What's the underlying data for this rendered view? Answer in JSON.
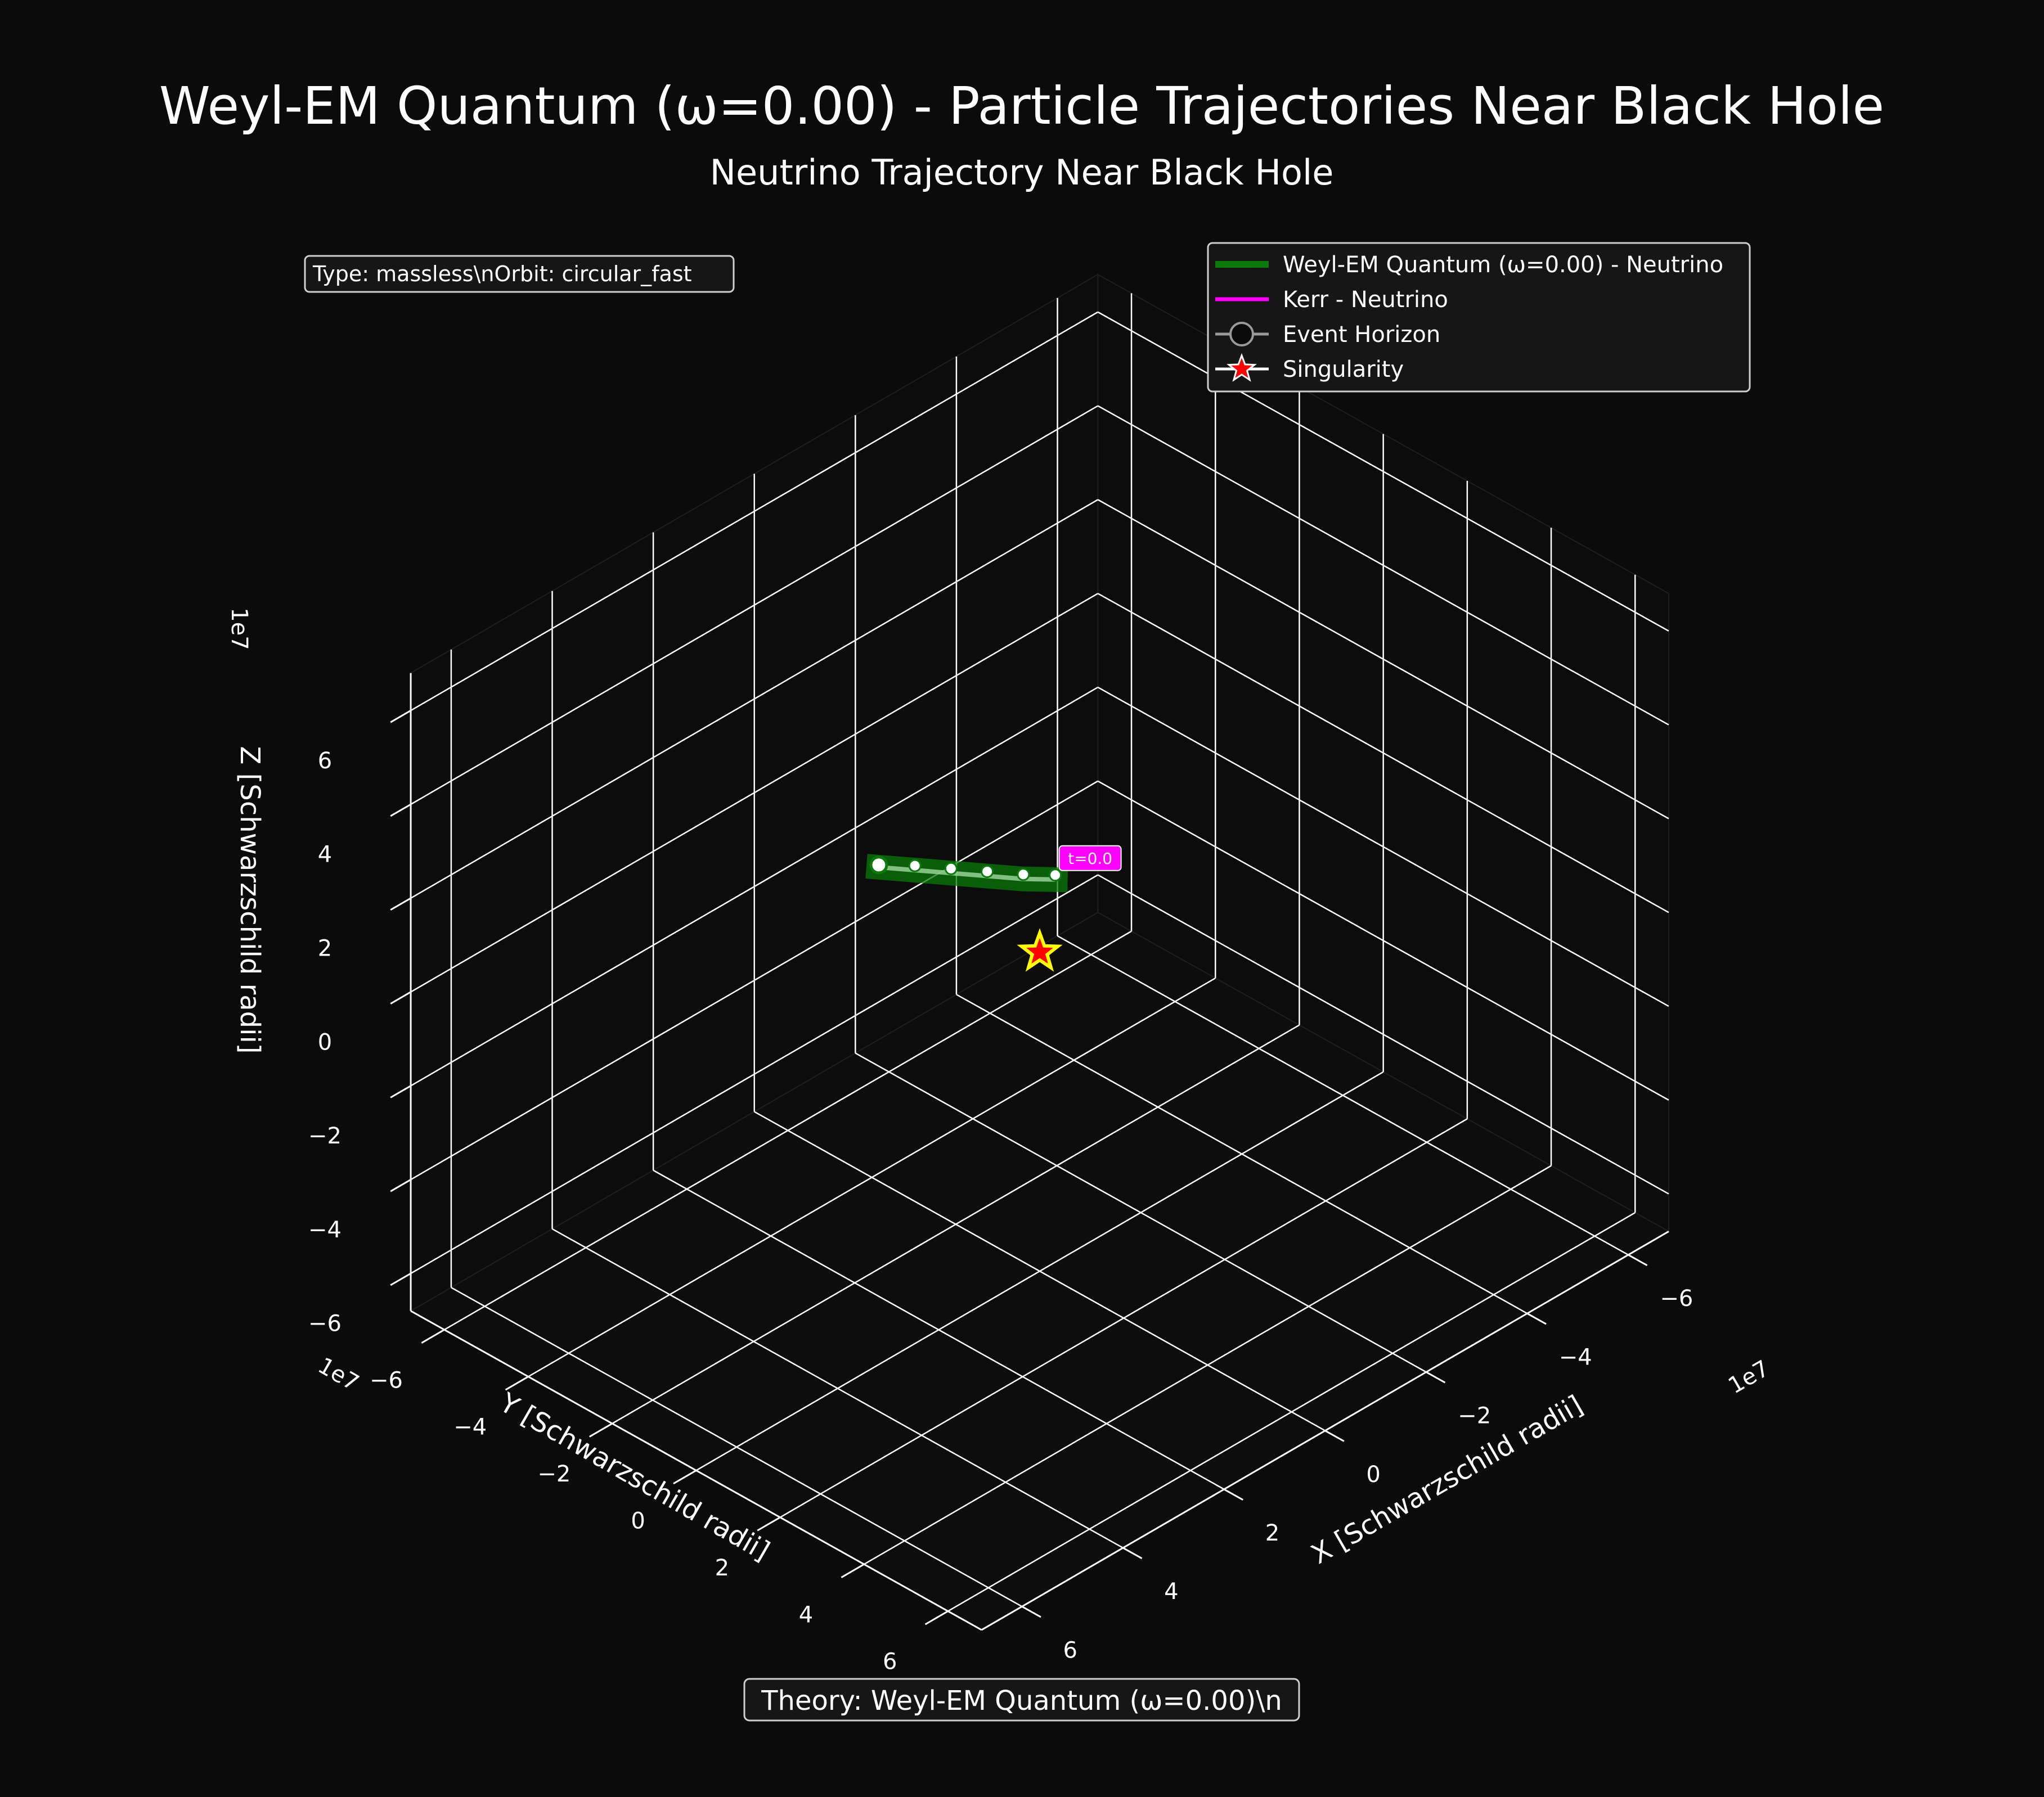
{
  "figure": {
    "suptitle": "Weyl-EM Quantum (ω=0.00) - Particle Trajectories Near Black Hole",
    "subtitle": "Neutrino Trajectory Near Black Hole",
    "info_box": "Type: massless\\nOrbit: circular_fast",
    "theory_box": "Theory: Weyl-EM Quantum (ω=0.00)\\n",
    "start_label": "t=0.0"
  },
  "colors": {
    "background": "#0b0b0b",
    "weyl_series": "#0a7a0a",
    "kerr_series": "#ff00ff",
    "horizon": "#9a9a9a",
    "singularity": "#ff0000",
    "singularity_edge": "#ffff00",
    "grid": "#ffffff",
    "legend_bg": "#161616"
  },
  "legend": [
    {
      "label": "Weyl-EM Quantum (ω=0.00) - Neutrino",
      "marker": "line",
      "color": "#0a7a0a"
    },
    {
      "label": "Kerr - Neutrino",
      "marker": "line",
      "color": "#ff00ff"
    },
    {
      "label": "Event Horizon",
      "marker": "circle",
      "color": "#9a9a9a"
    },
    {
      "label": "Singularity",
      "marker": "star",
      "color": "#ff0000"
    }
  ],
  "chart_data": {
    "type": "scatter",
    "projection": "3d",
    "xlabel": "X [Schwarzschild radii]",
    "ylabel": "Y [Schwarzschild radii]",
    "zlabel": "Z [Schwarzschild radii]",
    "offset_text": "1e7",
    "xlim": [
      -6.8,
      6.8
    ],
    "ylim": [
      -6.8,
      6.8
    ],
    "zlim": [
      -6.8,
      6.8
    ],
    "ticks": [
      -6,
      -4,
      -2,
      0,
      2,
      4,
      6
    ],
    "tick_labels": [
      "−6",
      "−4",
      "−2",
      "0",
      "2",
      "4",
      "6"
    ],
    "grid": true,
    "legend_position": "upper right",
    "series": [
      {
        "name": "Weyl-EM Quantum (ω=0.00) - Neutrino",
        "points": [
          {
            "x": -1.3,
            "y": -5.4,
            "z": -1.7
          },
          {
            "x": -1.6,
            "y": -4.9,
            "z": -1.7
          },
          {
            "x": -1.9,
            "y": -4.4,
            "z": -1.7
          },
          {
            "x": -2.2,
            "y": -3.9,
            "z": -1.7
          },
          {
            "x": -2.5,
            "y": -3.4,
            "z": -1.7
          },
          {
            "x": -2.8,
            "y": -3.0,
            "z": -1.7
          }
        ]
      }
    ],
    "singularity": {
      "x": 0,
      "y": 0,
      "z": 0
    }
  }
}
